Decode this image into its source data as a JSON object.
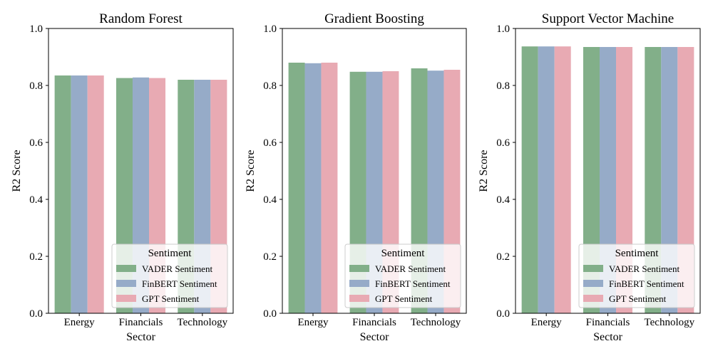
{
  "chart_data": [
    {
      "type": "bar",
      "title": "Random Forest",
      "xlabel": "Sector",
      "ylabel": "R2 Score",
      "ylim": [
        0,
        1
      ],
      "yticks": [
        "0.0",
        "0.2",
        "0.4",
        "0.6",
        "0.8",
        "1.0"
      ],
      "categories": [
        "Energy",
        "Financials",
        "Technology"
      ],
      "series": [
        {
          "name": "VADER Sentiment",
          "values": [
            0.835,
            0.826,
            0.82
          ]
        },
        {
          "name": "FinBERT Sentiment",
          "values": [
            0.835,
            0.828,
            0.82
          ]
        },
        {
          "name": "GPT Sentiment",
          "values": [
            0.835,
            0.826,
            0.82
          ]
        }
      ],
      "legend": {
        "title": "Sentiment",
        "placement": "lower-right"
      }
    },
    {
      "type": "bar",
      "title": "Gradient Boosting",
      "xlabel": "Sector",
      "ylabel": "R2 Score",
      "ylim": [
        0,
        1
      ],
      "yticks": [
        "0.0",
        "0.2",
        "0.4",
        "0.6",
        "0.8",
        "1.0"
      ],
      "categories": [
        "Energy",
        "Financials",
        "Technology"
      ],
      "series": [
        {
          "name": "VADER Sentiment",
          "values": [
            0.88,
            0.848,
            0.86
          ]
        },
        {
          "name": "FinBERT Sentiment",
          "values": [
            0.878,
            0.848,
            0.852
          ]
        },
        {
          "name": "GPT Sentiment",
          "values": [
            0.88,
            0.85,
            0.855
          ]
        }
      ],
      "legend": {
        "title": "Sentiment",
        "placement": "lower-right"
      }
    },
    {
      "type": "bar",
      "title": "Support Vector Machine",
      "xlabel": "Sector",
      "ylabel": "R2 Score",
      "ylim": [
        0,
        1
      ],
      "yticks": [
        "0.0",
        "0.2",
        "0.4",
        "0.6",
        "0.8",
        "1.0"
      ],
      "categories": [
        "Energy",
        "Financials",
        "Technology"
      ],
      "series": [
        {
          "name": "VADER Sentiment",
          "values": [
            0.937,
            0.935,
            0.935
          ]
        },
        {
          "name": "FinBERT Sentiment",
          "values": [
            0.937,
            0.935,
            0.935
          ]
        },
        {
          "name": "GPT Sentiment",
          "values": [
            0.937,
            0.935,
            0.935
          ]
        }
      ],
      "legend": {
        "title": "Sentiment",
        "placement": "lower-right"
      }
    }
  ],
  "colors": {
    "series": [
      "#82af89",
      "#96abc8",
      "#e8aab3"
    ]
  }
}
